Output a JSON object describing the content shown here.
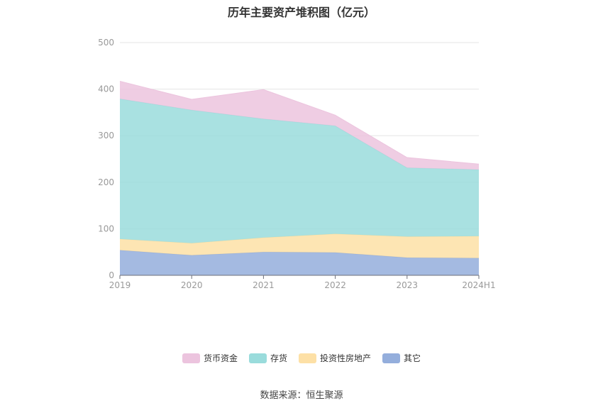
{
  "title": "历年主要资产堆积图（亿元）",
  "source": "数据来源：恒生聚源",
  "chart_data": {
    "type": "area",
    "stacked": true,
    "categories": [
      "2019",
      "2020",
      "2021",
      "2022",
      "2023",
      "2024H1"
    ],
    "ylim": [
      0,
      500
    ],
    "yticks": [
      "0",
      "100",
      "200",
      "300",
      "400",
      "500"
    ],
    "grid": true,
    "legend_position": "bottom",
    "series": [
      {
        "name": "其它",
        "color": "#94aedc",
        "values": [
          54,
          43,
          50,
          49,
          38,
          37
        ]
      },
      {
        "name": "投资性房地产",
        "color": "#fde0a6",
        "values": [
          24,
          26,
          31,
          40,
          45,
          47
        ]
      },
      {
        "name": "存货",
        "color": "#9adcdc",
        "values": [
          301,
          286,
          255,
          232,
          148,
          143
        ]
      },
      {
        "name": "货币资金",
        "color": "#ecc4de",
        "values": [
          38,
          23,
          63,
          23,
          22,
          12
        ]
      }
    ],
    "legend_order": [
      "货币资金",
      "存货",
      "投资性房地产",
      "其它"
    ]
  }
}
